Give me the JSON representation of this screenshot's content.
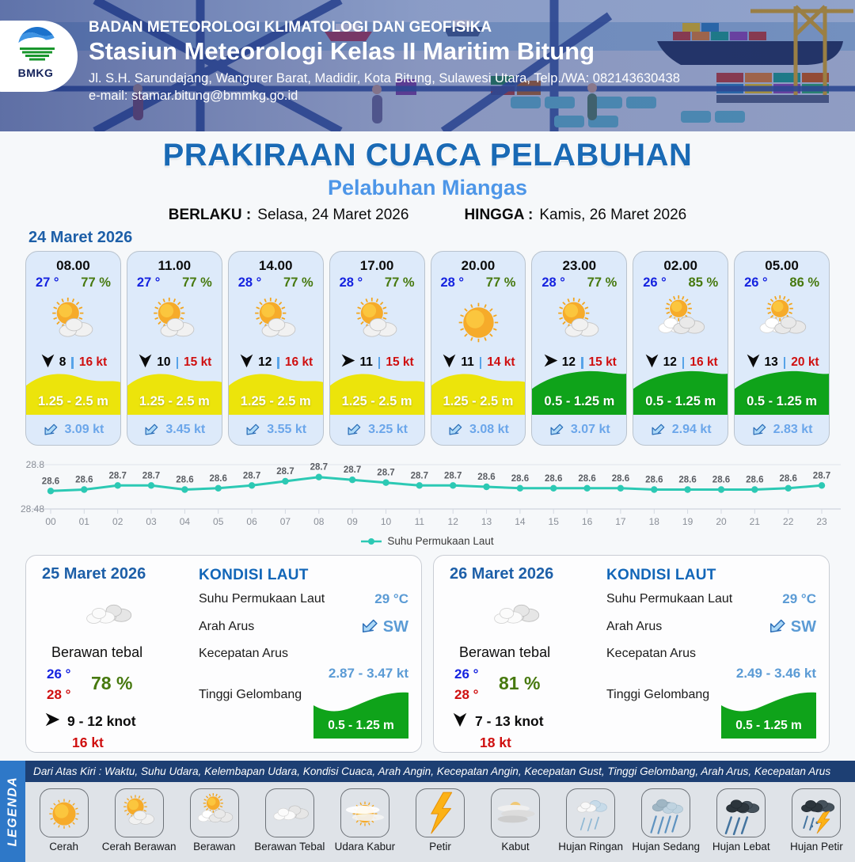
{
  "header": {
    "agency": "BADAN METEOROLOGI KLIMATOLOGI DAN GEOFISIKA",
    "station": "Stasiun Meteorologi Kelas II Maritim Bitung",
    "address": "Jl. S.H. Sarundajang, Wangurer Barat, Madidir, Kota Bitung, Sulawesi Utara, Telp./WA: 082143630438",
    "email": "e-mail: stamar.bitung@bmmkg.go.id",
    "logo_text": "BMKG"
  },
  "title": {
    "main": "PRAKIRAAN CUACA PELABUHAN",
    "port": "Pelabuhan Miangas",
    "valid_from_label": "BERLAKU :",
    "valid_from": "Selasa, 24 Maret 2026",
    "valid_to_label": "HINGGA :",
    "valid_to": "Kamis, 26 Maret 2026"
  },
  "hourly": {
    "date": "24 Maret 2026",
    "cards": [
      {
        "time": "08.00",
        "temp": "27 °",
        "humidity": "77 %",
        "icon": "cerah-berawan",
        "wind_dir": "S",
        "wind": "8",
        "gust": "16 kt",
        "wave": "1.25 - 2.5 m",
        "wave_level": "yellow",
        "current": "3.09 kt"
      },
      {
        "time": "11.00",
        "temp": "27 °",
        "humidity": "77 %",
        "icon": "cerah-berawan",
        "wind_dir": "S",
        "wind": "10",
        "gust": "15 kt",
        "wave": "1.25 - 2.5 m",
        "wave_level": "yellow",
        "current": "3.45 kt"
      },
      {
        "time": "14.00",
        "temp": "28 °",
        "humidity": "77 %",
        "icon": "cerah-berawan",
        "wind_dir": "S",
        "wind": "12",
        "gust": "16 kt",
        "wave": "1.25 - 2.5 m",
        "wave_level": "yellow",
        "current": "3.55 kt"
      },
      {
        "time": "17.00",
        "temp": "28 °",
        "humidity": "77 %",
        "icon": "cerah-berawan",
        "wind_dir": "E",
        "wind": "11",
        "gust": "15 kt",
        "wave": "1.25 - 2.5 m",
        "wave_level": "yellow",
        "current": "3.25 kt"
      },
      {
        "time": "20.00",
        "temp": "28 °",
        "humidity": "77 %",
        "icon": "cerah",
        "wind_dir": "S",
        "wind": "11",
        "gust": "14 kt",
        "wave": "1.25 - 2.5 m",
        "wave_level": "yellow",
        "current": "3.08 kt"
      },
      {
        "time": "23.00",
        "temp": "28 °",
        "humidity": "77 %",
        "icon": "cerah-berawan",
        "wind_dir": "E",
        "wind": "12",
        "gust": "15 kt",
        "wave": "0.5 - 1.25 m",
        "wave_level": "green",
        "current": "3.07 kt"
      },
      {
        "time": "02.00",
        "temp": "26 °",
        "humidity": "85 %",
        "icon": "berawan",
        "wind_dir": "S",
        "wind": "12",
        "gust": "16 kt",
        "wave": "0.5 - 1.25 m",
        "wave_level": "green",
        "current": "2.94 kt"
      },
      {
        "time": "05.00",
        "temp": "26 °",
        "humidity": "86 %",
        "icon": "berawan",
        "wind_dir": "S",
        "wind": "13",
        "gust": "20 kt",
        "wave": "0.5 - 1.25 m",
        "wave_level": "green",
        "current": "2.83 kt"
      }
    ]
  },
  "chart_data": {
    "type": "line",
    "title": "",
    "xlabel": "",
    "ylabel": "",
    "ylim": [
      28.48,
      28.8
    ],
    "yticks": [
      "28.8",
      "28.48"
    ],
    "grid": "top-and-baseline",
    "legend_position": "bottom",
    "x": [
      "00",
      "01",
      "02",
      "03",
      "04",
      "05",
      "06",
      "07",
      "08",
      "09",
      "10",
      "11",
      "12",
      "13",
      "14",
      "15",
      "16",
      "17",
      "18",
      "19",
      "20",
      "21",
      "22",
      "23"
    ],
    "series": [
      {
        "name": "Suhu Permukaan Laut",
        "color": "#2cc9b4",
        "values": [
          28.61,
          28.62,
          28.65,
          28.65,
          28.62,
          28.63,
          28.65,
          28.68,
          28.71,
          28.69,
          28.67,
          28.65,
          28.65,
          28.64,
          28.63,
          28.63,
          28.63,
          28.63,
          28.62,
          28.62,
          28.62,
          28.62,
          28.63,
          28.65
        ],
        "labels": [
          "28.6",
          "28.6",
          "28.7",
          "28.7",
          "28.6",
          "28.6",
          "28.7",
          "28.7",
          "28.7",
          "28.7",
          "28.7",
          "28.7",
          "28.7",
          "28.6",
          "28.6",
          "28.6",
          "28.6",
          "28.6",
          "28.6",
          "28.6",
          "28.6",
          "28.6",
          "28.6",
          "28.7"
        ]
      }
    ]
  },
  "daily": {
    "cards": [
      {
        "date": "25 Maret 2026",
        "condition": "Berawan tebal",
        "icon": "berawan-tebal",
        "temp_min": "26 °",
        "temp_max": "28 °",
        "humidity": "78 %",
        "wind_dir": "E",
        "wind_range": "9  - 12 knot",
        "gust": "16 kt",
        "sea": {
          "heading": "KONDISI LAUT",
          "sst_label": "Suhu Permukaan Laut",
          "sst": "29 °C",
          "current_dir_label": "Arah Arus",
          "current_dir": "SW",
          "current_speed_label": "Kecepatan Arus",
          "current_speed": "2.87 - 3.47 kt",
          "wave_label": "Tinggi Gelombang",
          "wave": "0.5 - 1.25 m"
        }
      },
      {
        "date": "26 Maret 2026",
        "condition": "Berawan tebal",
        "icon": "berawan-tebal",
        "temp_min": "26 °",
        "temp_max": "28 °",
        "humidity": "81 %",
        "wind_dir": "S",
        "wind_range": "7  - 13 knot",
        "gust": "18 kt",
        "sea": {
          "heading": "KONDISI LAUT",
          "sst_label": "Suhu Permukaan Laut",
          "sst": "29 °C",
          "current_dir_label": "Arah Arus",
          "current_dir": "SW",
          "current_speed_label": "Kecepatan Arus",
          "current_speed": "2.49 - 3.46 kt",
          "wave_label": "Tinggi Gelombang",
          "wave": "0.5 - 1.25 m"
        }
      }
    ]
  },
  "legend": {
    "label": "LEGENDA",
    "note": "Dari Atas Kiri : Waktu, Suhu Udara, Kelembapan Udara, Kondisi Cuaca, Arah Angin, Kecepatan Angin, Kecepatan Gust, Tinggi Gelombang, Arah Arus, Kecepatan Arus",
    "items": [
      {
        "label": "Cerah",
        "icon": "cerah"
      },
      {
        "label": "Cerah Berawan",
        "icon": "cerah-berawan"
      },
      {
        "label": "Berawan",
        "icon": "berawan"
      },
      {
        "label": "Berawan Tebal",
        "icon": "berawan-tebal"
      },
      {
        "label": "Udara Kabur",
        "icon": "udara-kabur"
      },
      {
        "label": "Petir",
        "icon": "petir"
      },
      {
        "label": "Kabut",
        "icon": "kabut"
      },
      {
        "label": "Hujan Ringan",
        "icon": "hujan-ringan"
      },
      {
        "label": "Hujan Sedang",
        "icon": "hujan-sedang"
      },
      {
        "label": "Hujan Lebat",
        "icon": "hujan-lebat"
      },
      {
        "label": "Hujan Petir",
        "icon": "hujan-petir"
      }
    ]
  },
  "colors": {
    "title_blue": "#1a6ab5",
    "subtitle_blue": "#4d96e8",
    "date_blue": "#1d5fa8",
    "temp_blue": "#1523e0",
    "temp_red": "#cf0f0f",
    "humidity_green": "#47790f",
    "gust_red": "#cf0f0f",
    "wave_yellow": "#ece40b",
    "wave_green": "#0fa31a",
    "current_text_blue": "#6ba6ea",
    "chart_line_teal": "#2cc9b4",
    "sea_value_blue": "#5b9bd5",
    "kondisi_heading_blue": "#1266b8",
    "legend_bar_blue": "#2e78c8",
    "legend_note_navy": "#1d3f73"
  }
}
